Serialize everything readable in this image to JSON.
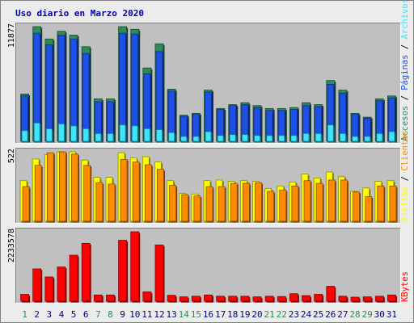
{
  "chart_data": [
    {
      "type": "bar",
      "title": "Uso diario en Marzo 2020",
      "categories": [
        "1",
        "2",
        "3",
        "4",
        "5",
        "6",
        "7",
        "8",
        "9",
        "10",
        "11",
        "12",
        "13",
        "14",
        "15",
        "16",
        "17",
        "18",
        "19",
        "20",
        "21",
        "22",
        "23",
        "24",
        "25",
        "26",
        "27",
        "28",
        "29",
        "30",
        "31"
      ],
      "weekend_days": [
        "1",
        "7",
        "8",
        "14",
        "15",
        "21",
        "22",
        "28",
        "29"
      ],
      "ylim": [
        0,
        11877
      ],
      "y_tick": "11877",
      "series": [
        {
          "name": "Accesos",
          "color": "#2e8b57",
          "values": [
            4900,
            11877,
            10600,
            11400,
            11000,
            9800,
            4400,
            4400,
            11877,
            11600,
            7600,
            10100,
            5400,
            2700,
            2900,
            5300,
            3400,
            3800,
            4000,
            3700,
            3400,
            3400,
            3500,
            4000,
            3800,
            6300,
            5300,
            2900,
            2500,
            4400,
            4700
          ]
        },
        {
          "name": "Páginas",
          "color": "#1e50e6",
          "values": [
            4700,
            11200,
            10000,
            11000,
            10600,
            9100,
            4100,
            4100,
            11200,
            11100,
            7000,
            9300,
            5200,
            2600,
            2800,
            5100,
            3300,
            3700,
            3800,
            3500,
            3200,
            3200,
            3300,
            3700,
            3600,
            5900,
            5000,
            2800,
            2400,
            4200,
            4500
          ]
        },
        {
          "name": "Archivos",
          "color": "#3ce6ff",
          "values": [
            1100,
            1900,
            1300,
            1800,
            1600,
            1300,
            800,
            800,
            1700,
            1600,
            1300,
            1200,
            900,
            500,
            500,
            1000,
            600,
            700,
            700,
            600,
            600,
            600,
            600,
            800,
            800,
            1700,
            800,
            500,
            500,
            800,
            1000
          ]
        }
      ]
    },
    {
      "type": "bar",
      "ylim": [
        0,
        522
      ],
      "y_tick": "522",
      "series": [
        {
          "name": "Visitas",
          "color": "#ffff00",
          "values": [
            305,
            468,
            500,
            522,
            522,
            460,
            330,
            330,
            515,
            475,
            485,
            445,
            305,
            210,
            205,
            305,
            310,
            300,
            305,
            300,
            245,
            265,
            295,
            355,
            325,
            370,
            335,
            225,
            250,
            300,
            305
          ]
        },
        {
          "name": "Clientes",
          "color": "#ff8c00",
          "values": [
            260,
            420,
            515,
            522,
            505,
            420,
            290,
            280,
            465,
            445,
            425,
            390,
            270,
            200,
            190,
            260,
            260,
            285,
            285,
            290,
            225,
            235,
            265,
            305,
            285,
            310,
            310,
            220,
            185,
            265,
            265
          ]
        }
      ]
    },
    {
      "type": "bar",
      "ylim": [
        0,
        2233578
      ],
      "y_tick": "2233578",
      "series": [
        {
          "name": "KBytes",
          "color": "#ff0000",
          "values": [
            220000,
            1040000,
            780000,
            1100000,
            1480000,
            1860000,
            200000,
            200000,
            1960000,
            2233578,
            300000,
            1810000,
            190000,
            140000,
            160000,
            200000,
            160000,
            160000,
            160000,
            140000,
            160000,
            150000,
            240000,
            180000,
            220000,
            480000,
            160000,
            130000,
            140000,
            160000,
            200000
          ]
        }
      ]
    }
  ],
  "legend": {
    "top": [
      {
        "label": "Accesos",
        "color": "#2e8b57"
      },
      {
        "label": "Páginas",
        "color": "#1e50e6"
      },
      {
        "label": "Archivos",
        "color": "#3ce6ff"
      }
    ],
    "middle": [
      {
        "label": "Visitas",
        "color": "#ffff00"
      },
      {
        "label": "Clientes",
        "color": "#ff8c00"
      }
    ],
    "bottom": [
      {
        "label": "KBytes",
        "color": "#ff0000"
      }
    ],
    "separator": " / "
  },
  "colors": {
    "background": "#ececec",
    "panel": "#c0c0c0",
    "title": "#0000b4",
    "weekday_label": "#000080",
    "weekend_label": "#2e8b57"
  }
}
